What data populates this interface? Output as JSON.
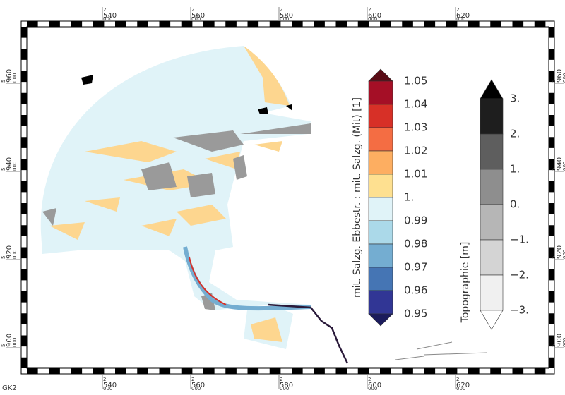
{
  "projection": "GK2",
  "x_ticks": [
    {
      "prefix": "2",
      "label": "540",
      "suffix": "000"
    },
    {
      "prefix": "2",
      "label": "560",
      "suffix": "000"
    },
    {
      "prefix": "2",
      "label": "580",
      "suffix": "000"
    },
    {
      "prefix": "2",
      "label": "600",
      "suffix": "000"
    },
    {
      "prefix": "2",
      "label": "620",
      "suffix": "000"
    }
  ],
  "y_ticks": [
    {
      "prefix": "5",
      "label": "960",
      "suffix": "000"
    },
    {
      "prefix": "5",
      "label": "940",
      "suffix": "000"
    },
    {
      "prefix": "5",
      "label": "920",
      "suffix": "000"
    },
    {
      "prefix": "5",
      "label": "900",
      "suffix": "000"
    }
  ],
  "salinity_legend": {
    "title": "mit. Salzg. Ebbestr. : mit. Salzg. (Mit) [1]",
    "labels": [
      "1.05",
      "1.04",
      "1.03",
      "1.02",
      "1.01",
      "1.",
      "0.99",
      "0.98",
      "0.97",
      "0.96",
      "0.95"
    ],
    "over_color": "#5a0c16",
    "colors": [
      "#a50f26",
      "#d73027",
      "#f46d43",
      "#fdae61",
      "#fee090",
      "#e0f3f8",
      "#abd9e9",
      "#74add1",
      "#4575b4",
      "#313695"
    ],
    "under_color": "#1b1b5c"
  },
  "topography_legend": {
    "title": "Topographie [m]",
    "labels": [
      "3.",
      "2.",
      "1.",
      "0.",
      "−1.",
      "−2.",
      "−3."
    ],
    "over_color": "#000000",
    "colors": [
      "#1e1e1e",
      "#5e5e5e",
      "#8e8e8e",
      "#b6b6b6",
      "#d4d4d4",
      "#f0f0f0"
    ],
    "under_color": "#ffffff"
  }
}
